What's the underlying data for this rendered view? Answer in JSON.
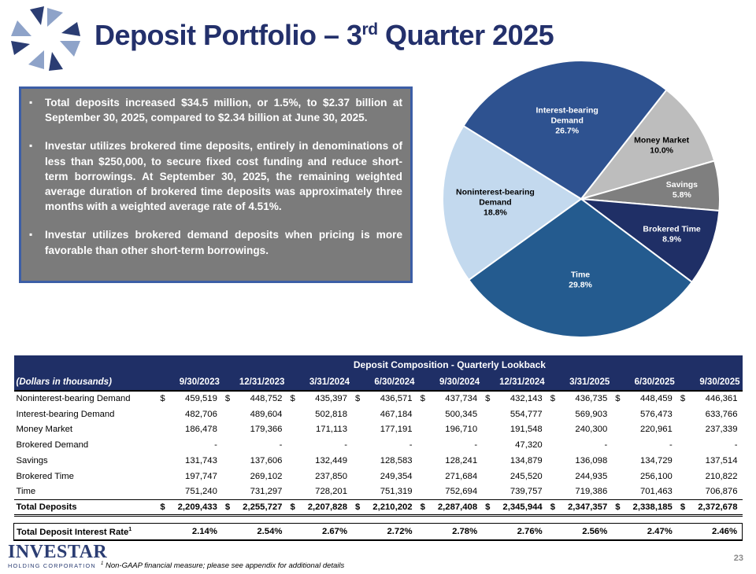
{
  "header": {
    "title_main": "Deposit Portfolio – 3",
    "title_sup": "rd",
    "title_tail": " Quarter 2025"
  },
  "bullets": [
    "Total deposits increased $34.5 million, or 1.5%, to $2.37 billion at September 30, 2025, compared to $2.34 billion at June 30, 2025.",
    "Investar utilizes brokered time deposits, entirely in denominations of less than $250,000, to secure fixed cost funding and reduce short-term borrowings. At September 30, 2025, the remaining weighted average duration of brokered time deposits was approximately three months with a weighted average rate of 4.51%.",
    "Investar utilizes brokered demand deposits when pricing is more favorable than other short-term borrowings."
  ],
  "chart_data": [
    {
      "type": "pie",
      "title": "",
      "start_angle_deg_clockwise_from_top": 38,
      "slices": [
        {
          "label_lines": [
            "Money Market"
          ],
          "pct_label": "10.0%",
          "value": 10.0,
          "color": "#bdbdbd",
          "text_color": "#000000"
        },
        {
          "label_lines": [
            "Savings"
          ],
          "pct_label": "5.8%",
          "value": 5.8,
          "color": "#7f7f7f",
          "text_color": "#ffffff"
        },
        {
          "label_lines": [
            "Brokered Time"
          ],
          "pct_label": "8.9%",
          "value": 8.9,
          "color": "#1f2f66",
          "text_color": "#ffffff"
        },
        {
          "label_lines": [
            "Time"
          ],
          "pct_label": "29.8%",
          "value": 29.8,
          "color": "#245b8f",
          "text_color": "#ffffff"
        },
        {
          "label_lines": [
            "Noninterest-bearing",
            "Demand"
          ],
          "pct_label": "18.8%",
          "value": 18.8,
          "color": "#c3d9ee",
          "text_color": "#000000"
        },
        {
          "label_lines": [
            "Interest-bearing",
            "Demand"
          ],
          "pct_label": "26.7%",
          "value": 26.7,
          "color": "#2e5290",
          "text_color": "#ffffff"
        }
      ]
    },
    {
      "type": "table",
      "title": "Deposit Composition - Quarterly Lookback",
      "first_col_header": "(Dollars in thousands)",
      "columns": [
        "9/30/2023",
        "12/31/2023",
        "3/31/2024",
        "6/30/2024",
        "9/30/2024",
        "12/31/2024",
        "3/31/2025",
        "6/30/2025",
        "9/30/2025"
      ],
      "rows": [
        {
          "label": "Noninterest-bearing Demand",
          "dollar": true,
          "values": [
            "459,519",
            "448,752",
            "435,397",
            "436,571",
            "437,734",
            "432,143",
            "436,735",
            "448,459",
            "446,361"
          ]
        },
        {
          "label": "Interest-bearing Demand",
          "dollar": false,
          "values": [
            "482,706",
            "489,604",
            "502,818",
            "467,184",
            "500,345",
            "554,777",
            "569,903",
            "576,473",
            "633,766"
          ]
        },
        {
          "label": "Money Market",
          "dollar": false,
          "values": [
            "186,478",
            "179,366",
            "171,113",
            "177,191",
            "196,710",
            "191,548",
            "240,300",
            "220,961",
            "237,339"
          ]
        },
        {
          "label": "Brokered Demand",
          "dollar": false,
          "values": [
            "-",
            "-",
            "-",
            "-",
            "-",
            "47,320",
            "-",
            "-",
            "-"
          ]
        },
        {
          "label": "Savings",
          "dollar": false,
          "values": [
            "131,743",
            "137,606",
            "132,449",
            "128,583",
            "128,241",
            "134,879",
            "136,098",
            "134,729",
            "137,514"
          ]
        },
        {
          "label": "Brokered Time",
          "dollar": false,
          "values": [
            "197,747",
            "269,102",
            "237,850",
            "249,354",
            "271,684",
            "245,520",
            "244,935",
            "256,100",
            "210,822"
          ]
        },
        {
          "label": "Time",
          "dollar": false,
          "values": [
            "751,240",
            "731,297",
            "728,201",
            "751,319",
            "752,694",
            "739,757",
            "719,386",
            "701,463",
            "706,876"
          ]
        }
      ],
      "total": {
        "label": "Total Deposits",
        "values": [
          "2,209,433",
          "2,255,727",
          "2,207,828",
          "2,210,202",
          "2,287,408",
          "2,345,944",
          "2,347,357",
          "2,338,185",
          "2,372,678"
        ]
      },
      "rate": {
        "label": "Total Deposit Interest Rate",
        "label_sup": "1",
        "values": [
          "2.14%",
          "2.54%",
          "2.67%",
          "2.72%",
          "2.78%",
          "2.76%",
          "2.56%",
          "2.47%",
          "2.46%"
        ]
      },
      "currency_symbol": "$"
    }
  ],
  "footer": {
    "brand_name": "INVESTAR",
    "brand_sub": "HOLDING CORPORATION",
    "footnote_sup": "1",
    "footnote": " Non-GAAP financial measure; please see appendix for additional details",
    "page_number": "23"
  }
}
